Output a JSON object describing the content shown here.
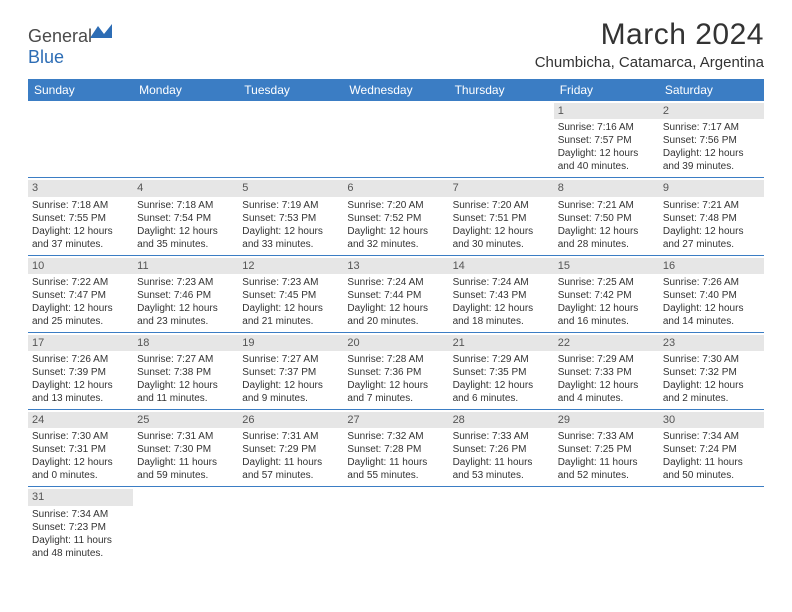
{
  "logo": {
    "text1": "General",
    "text2": "Blue"
  },
  "title": "March 2024",
  "location": "Chumbicha, Catamarca, Argentina",
  "colors": {
    "header_bg": "#3b7dc4",
    "header_text": "#ffffff",
    "daynum_bg": "#e6e6e6",
    "border": "#3b7dc4",
    "text": "#333333",
    "logo_gray": "#4a4a4a",
    "logo_blue": "#2d6db5"
  },
  "weekdays": [
    "Sunday",
    "Monday",
    "Tuesday",
    "Wednesday",
    "Thursday",
    "Friday",
    "Saturday"
  ],
  "weeks": [
    [
      null,
      null,
      null,
      null,
      null,
      {
        "n": "1",
        "sr": "Sunrise: 7:16 AM",
        "ss": "Sunset: 7:57 PM",
        "d1": "Daylight: 12 hours",
        "d2": "and 40 minutes."
      },
      {
        "n": "2",
        "sr": "Sunrise: 7:17 AM",
        "ss": "Sunset: 7:56 PM",
        "d1": "Daylight: 12 hours",
        "d2": "and 39 minutes."
      }
    ],
    [
      {
        "n": "3",
        "sr": "Sunrise: 7:18 AM",
        "ss": "Sunset: 7:55 PM",
        "d1": "Daylight: 12 hours",
        "d2": "and 37 minutes."
      },
      {
        "n": "4",
        "sr": "Sunrise: 7:18 AM",
        "ss": "Sunset: 7:54 PM",
        "d1": "Daylight: 12 hours",
        "d2": "and 35 minutes."
      },
      {
        "n": "5",
        "sr": "Sunrise: 7:19 AM",
        "ss": "Sunset: 7:53 PM",
        "d1": "Daylight: 12 hours",
        "d2": "and 33 minutes."
      },
      {
        "n": "6",
        "sr": "Sunrise: 7:20 AM",
        "ss": "Sunset: 7:52 PM",
        "d1": "Daylight: 12 hours",
        "d2": "and 32 minutes."
      },
      {
        "n": "7",
        "sr": "Sunrise: 7:20 AM",
        "ss": "Sunset: 7:51 PM",
        "d1": "Daylight: 12 hours",
        "d2": "and 30 minutes."
      },
      {
        "n": "8",
        "sr": "Sunrise: 7:21 AM",
        "ss": "Sunset: 7:50 PM",
        "d1": "Daylight: 12 hours",
        "d2": "and 28 minutes."
      },
      {
        "n": "9",
        "sr": "Sunrise: 7:21 AM",
        "ss": "Sunset: 7:48 PM",
        "d1": "Daylight: 12 hours",
        "d2": "and 27 minutes."
      }
    ],
    [
      {
        "n": "10",
        "sr": "Sunrise: 7:22 AM",
        "ss": "Sunset: 7:47 PM",
        "d1": "Daylight: 12 hours",
        "d2": "and 25 minutes."
      },
      {
        "n": "11",
        "sr": "Sunrise: 7:23 AM",
        "ss": "Sunset: 7:46 PM",
        "d1": "Daylight: 12 hours",
        "d2": "and 23 minutes."
      },
      {
        "n": "12",
        "sr": "Sunrise: 7:23 AM",
        "ss": "Sunset: 7:45 PM",
        "d1": "Daylight: 12 hours",
        "d2": "and 21 minutes."
      },
      {
        "n": "13",
        "sr": "Sunrise: 7:24 AM",
        "ss": "Sunset: 7:44 PM",
        "d1": "Daylight: 12 hours",
        "d2": "and 20 minutes."
      },
      {
        "n": "14",
        "sr": "Sunrise: 7:24 AM",
        "ss": "Sunset: 7:43 PM",
        "d1": "Daylight: 12 hours",
        "d2": "and 18 minutes."
      },
      {
        "n": "15",
        "sr": "Sunrise: 7:25 AM",
        "ss": "Sunset: 7:42 PM",
        "d1": "Daylight: 12 hours",
        "d2": "and 16 minutes."
      },
      {
        "n": "16",
        "sr": "Sunrise: 7:26 AM",
        "ss": "Sunset: 7:40 PM",
        "d1": "Daylight: 12 hours",
        "d2": "and 14 minutes."
      }
    ],
    [
      {
        "n": "17",
        "sr": "Sunrise: 7:26 AM",
        "ss": "Sunset: 7:39 PM",
        "d1": "Daylight: 12 hours",
        "d2": "and 13 minutes."
      },
      {
        "n": "18",
        "sr": "Sunrise: 7:27 AM",
        "ss": "Sunset: 7:38 PM",
        "d1": "Daylight: 12 hours",
        "d2": "and 11 minutes."
      },
      {
        "n": "19",
        "sr": "Sunrise: 7:27 AM",
        "ss": "Sunset: 7:37 PM",
        "d1": "Daylight: 12 hours",
        "d2": "and 9 minutes."
      },
      {
        "n": "20",
        "sr": "Sunrise: 7:28 AM",
        "ss": "Sunset: 7:36 PM",
        "d1": "Daylight: 12 hours",
        "d2": "and 7 minutes."
      },
      {
        "n": "21",
        "sr": "Sunrise: 7:29 AM",
        "ss": "Sunset: 7:35 PM",
        "d1": "Daylight: 12 hours",
        "d2": "and 6 minutes."
      },
      {
        "n": "22",
        "sr": "Sunrise: 7:29 AM",
        "ss": "Sunset: 7:33 PM",
        "d1": "Daylight: 12 hours",
        "d2": "and 4 minutes."
      },
      {
        "n": "23",
        "sr": "Sunrise: 7:30 AM",
        "ss": "Sunset: 7:32 PM",
        "d1": "Daylight: 12 hours",
        "d2": "and 2 minutes."
      }
    ],
    [
      {
        "n": "24",
        "sr": "Sunrise: 7:30 AM",
        "ss": "Sunset: 7:31 PM",
        "d1": "Daylight: 12 hours",
        "d2": "and 0 minutes."
      },
      {
        "n": "25",
        "sr": "Sunrise: 7:31 AM",
        "ss": "Sunset: 7:30 PM",
        "d1": "Daylight: 11 hours",
        "d2": "and 59 minutes."
      },
      {
        "n": "26",
        "sr": "Sunrise: 7:31 AM",
        "ss": "Sunset: 7:29 PM",
        "d1": "Daylight: 11 hours",
        "d2": "and 57 minutes."
      },
      {
        "n": "27",
        "sr": "Sunrise: 7:32 AM",
        "ss": "Sunset: 7:28 PM",
        "d1": "Daylight: 11 hours",
        "d2": "and 55 minutes."
      },
      {
        "n": "28",
        "sr": "Sunrise: 7:33 AM",
        "ss": "Sunset: 7:26 PM",
        "d1": "Daylight: 11 hours",
        "d2": "and 53 minutes."
      },
      {
        "n": "29",
        "sr": "Sunrise: 7:33 AM",
        "ss": "Sunset: 7:25 PM",
        "d1": "Daylight: 11 hours",
        "d2": "and 52 minutes."
      },
      {
        "n": "30",
        "sr": "Sunrise: 7:34 AM",
        "ss": "Sunset: 7:24 PM",
        "d1": "Daylight: 11 hours",
        "d2": "and 50 minutes."
      }
    ],
    [
      {
        "n": "31",
        "sr": "Sunrise: 7:34 AM",
        "ss": "Sunset: 7:23 PM",
        "d1": "Daylight: 11 hours",
        "d2": "and 48 minutes."
      },
      null,
      null,
      null,
      null,
      null,
      null
    ]
  ]
}
